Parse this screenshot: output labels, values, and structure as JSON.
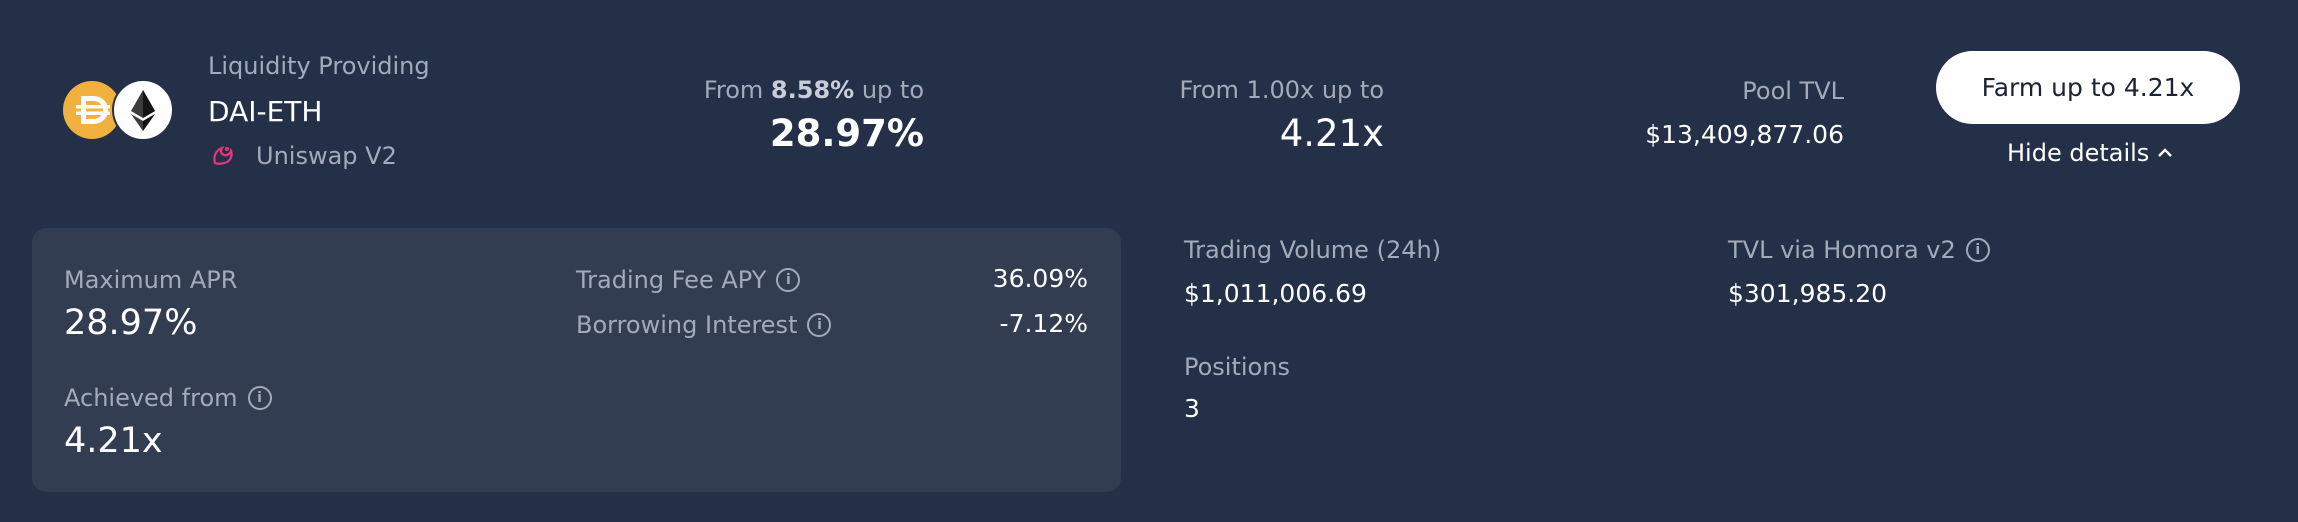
{
  "pool": {
    "category": "Liquidity Providing",
    "pair": "DAI-ETH",
    "dex": "Uniswap V2",
    "tokens": [
      "dai-icon",
      "eth-icon"
    ]
  },
  "apr": {
    "from_prefix": "From",
    "from_value": "8.58%",
    "from_suffix": "up to",
    "max": "28.97%"
  },
  "leverage": {
    "from_label": "From 1.00x up to",
    "max": "4.21x"
  },
  "tvl": {
    "label": "Pool TVL",
    "value": "$13,409,877.06"
  },
  "actions": {
    "farm_label": "Farm up to 4.21x",
    "hide_details_label": "Hide details"
  },
  "details": {
    "max_apr_label": "Maximum APR",
    "max_apr_value": "28.97%",
    "achieved_from_label": "Achieved from",
    "achieved_from_value": "4.21x",
    "trading_fee_label": "Trading Fee APY",
    "trading_fee_value": "36.09%",
    "borrowing_interest_label": "Borrowing Interest",
    "borrowing_interest_value": "-7.12%"
  },
  "stats": {
    "volume_label": "Trading Volume (24h)",
    "volume_value": "$1,011,006.69",
    "homora_tvl_label": "TVL via Homora v2",
    "homora_tvl_value": "$301,985.20",
    "positions_label": "Positions",
    "positions_value": "3"
  },
  "colors": {
    "background": "#243047",
    "panel": "#323d52",
    "dai": "#f0b13e",
    "uniswap": "#e8357d",
    "button": "#ffffff"
  }
}
